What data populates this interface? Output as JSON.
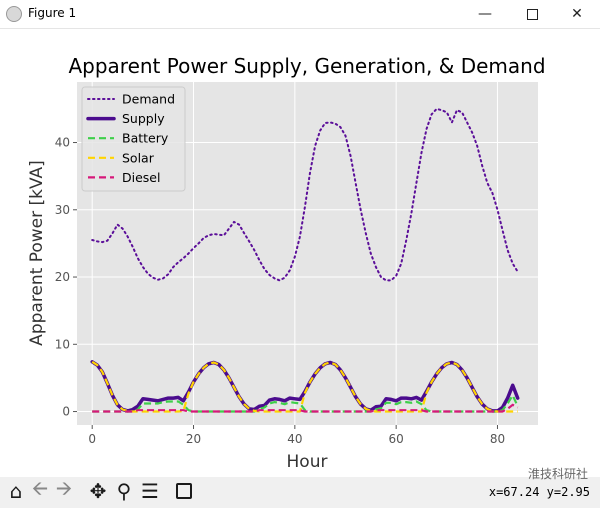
{
  "window": {
    "title": "Figure 1",
    "minimize_icon": "minimize-icon",
    "maximize_icon": "maximize-icon",
    "close_icon": "close-icon"
  },
  "toolbar": {
    "buttons": [
      "home-icon",
      "back-icon",
      "forward-icon",
      "pan-icon",
      "zoom-icon",
      "subplots-icon",
      "save-icon"
    ],
    "coords": "x=67.24 y=2.95",
    "watermark": "淮技科研社"
  },
  "chart_data": {
    "type": "line",
    "title": "Apparent Power Supply, Generation, & Demand",
    "xlabel": "Hour",
    "ylabel": "Apparent Power [kVA]",
    "xlim": [
      -3,
      88
    ],
    "ylim": [
      -2,
      49
    ],
    "xticks": [
      0,
      20,
      40,
      60,
      80
    ],
    "yticks": [
      0,
      10,
      20,
      30,
      40
    ],
    "grid": true,
    "legend_position": "upper-left",
    "x": [
      0,
      1,
      2,
      3,
      4,
      5,
      6,
      7,
      8,
      9,
      10,
      11,
      12,
      13,
      14,
      15,
      16,
      17,
      18,
      19,
      20,
      21,
      22,
      23,
      24,
      25,
      26,
      27,
      28,
      29,
      30,
      31,
      32,
      33,
      34,
      35,
      36,
      37,
      38,
      39,
      40,
      41,
      42,
      43,
      44,
      45,
      46,
      47,
      48,
      49,
      50,
      51,
      52,
      53,
      54,
      55,
      56,
      57,
      58,
      59,
      60,
      61,
      62,
      63,
      64,
      65,
      66,
      67,
      68,
      69,
      70,
      71,
      72,
      73,
      74,
      75,
      76,
      77,
      78,
      79,
      80,
      81,
      82,
      83,
      84
    ],
    "series": [
      {
        "name": "Demand",
        "color": "#5b0f99",
        "style": "dotted",
        "values": [
          25.5,
          25.3,
          25.2,
          25.4,
          26.5,
          27.8,
          27.2,
          26,
          24.5,
          22.8,
          21.5,
          20.5,
          19.9,
          19.6,
          19.8,
          20.4,
          21.5,
          22.2,
          22.8,
          23.5,
          24.3,
          25,
          25.8,
          26.2,
          26.4,
          26.3,
          26.2,
          27.2,
          28.2,
          27.8,
          26.5,
          25.3,
          24,
          22.5,
          21.2,
          20.3,
          19.8,
          19.5,
          19.9,
          21,
          23,
          26,
          30.5,
          35.5,
          39.5,
          41.8,
          42.9,
          43,
          42.8,
          42.3,
          41,
          38,
          34,
          30,
          26.5,
          23.5,
          21.5,
          20,
          19.5,
          19.5,
          20.2,
          22,
          25.5,
          29.5,
          34,
          38.5,
          42,
          44.2,
          45,
          44.8,
          44.5,
          43,
          44.8,
          44.5,
          43,
          41.5,
          39.5,
          36.5,
          34,
          32.5,
          30,
          27,
          24,
          22,
          20.8
        ]
      },
      {
        "name": "Supply",
        "color": "#4b0c8e",
        "style": "solid",
        "values": [
          7.4,
          6.9,
          5.9,
          4.2,
          2.4,
          1.0,
          0.3,
          0.1,
          0.3,
          0.8,
          1.9,
          1.8,
          1.7,
          1.6,
          1.8,
          2.0,
          2.0,
          2.1,
          1.6,
          2.9,
          4.4,
          5.6,
          6.5,
          7.1,
          7.3,
          7.0,
          6.2,
          5.0,
          3.6,
          2.2,
          1.1,
          0.4,
          0.3,
          0.8,
          0.9,
          1.7,
          1.9,
          1.8,
          1.6,
          2.0,
          1.9,
          1.8,
          3.0,
          4.4,
          5.6,
          6.5,
          7.1,
          7.3,
          7.0,
          6.2,
          5.0,
          3.6,
          2.2,
          1.1,
          0.4,
          0.2,
          0.7,
          0.8,
          1.9,
          1.8,
          1.6,
          2.0,
          2.0,
          1.9,
          2.1,
          1.7,
          3.0,
          4.4,
          5.6,
          6.5,
          7.1,
          7.3,
          7.0,
          6.2,
          5.0,
          3.6,
          2.2,
          1.1,
          0.4,
          0.1,
          0.1,
          0.6,
          2.0,
          3.9,
          2.0
        ]
      },
      {
        "name": "Battery",
        "color": "#3ecf4a",
        "style": "dashed",
        "values": [
          0,
          0,
          0,
          0,
          0,
          0,
          0,
          0,
          0,
          0.3,
          1.2,
          1.2,
          1.2,
          1.2,
          1.4,
          1.5,
          1.5,
          1.5,
          1.0,
          0.2,
          0,
          0,
          0,
          0,
          0,
          0,
          0,
          0,
          0,
          0,
          0,
          0,
          0,
          0.4,
          0.6,
          1.2,
          1.4,
          1.3,
          1.1,
          1.4,
          1.3,
          1.2,
          0.2,
          0,
          0,
          0,
          0,
          0,
          0,
          0,
          0,
          0,
          0,
          0,
          0,
          0,
          0.3,
          0.5,
          1.3,
          1.3,
          1.1,
          1.4,
          1.4,
          1.3,
          1.5,
          1.1,
          0.2,
          0,
          0,
          0,
          0,
          0,
          0,
          0,
          0,
          0,
          0,
          0,
          0,
          0,
          0,
          0.2,
          1.2,
          2.4,
          0.8
        ]
      },
      {
        "name": "Solar",
        "color": "#ffd400",
        "style": "dashed",
        "values": [
          7.4,
          6.9,
          5.9,
          4.2,
          2.4,
          1.0,
          0.3,
          0.1,
          0,
          0,
          0,
          0,
          0,
          0,
          0,
          0,
          0,
          0,
          0.1,
          2.7,
          4.4,
          5.6,
          6.5,
          7.1,
          7.3,
          7.0,
          6.2,
          5.0,
          3.6,
          2.2,
          1.1,
          0.4,
          0.1,
          0,
          0,
          0,
          0,
          0,
          0,
          0,
          0,
          0,
          2.8,
          4.4,
          5.6,
          6.5,
          7.1,
          7.3,
          7.0,
          6.2,
          5.0,
          3.6,
          2.2,
          1.1,
          0.4,
          0.1,
          0,
          0,
          0,
          0,
          0,
          0,
          0,
          0,
          0,
          0,
          2.8,
          4.4,
          5.6,
          6.5,
          7.1,
          7.3,
          7.0,
          6.2,
          5.0,
          3.6,
          2.2,
          1.1,
          0.4,
          0.1,
          0,
          0,
          0,
          0,
          0
        ]
      },
      {
        "name": "Diesel",
        "color": "#d6187a",
        "style": "dashed",
        "values": [
          0,
          0,
          0,
          0,
          0,
          0,
          0,
          0,
          0,
          0.2,
          0.2,
          0.2,
          0.2,
          0.2,
          0.2,
          0.2,
          0.2,
          0.2,
          0.2,
          0,
          0,
          0,
          0,
          0,
          0,
          0,
          0,
          0,
          0,
          0,
          0,
          0,
          0,
          0.2,
          0.2,
          0.2,
          0.2,
          0.2,
          0.2,
          0.2,
          0.2,
          0.2,
          0,
          0,
          0,
          0,
          0,
          0,
          0,
          0,
          0,
          0,
          0,
          0,
          0,
          0,
          0.2,
          0.2,
          0.2,
          0.2,
          0.2,
          0.2,
          0.2,
          0.2,
          0.2,
          0.2,
          0,
          0,
          0,
          0,
          0,
          0,
          0,
          0,
          0,
          0,
          0,
          0,
          0,
          0,
          0,
          0,
          0.4,
          1.0,
          0.6
        ]
      }
    ]
  }
}
